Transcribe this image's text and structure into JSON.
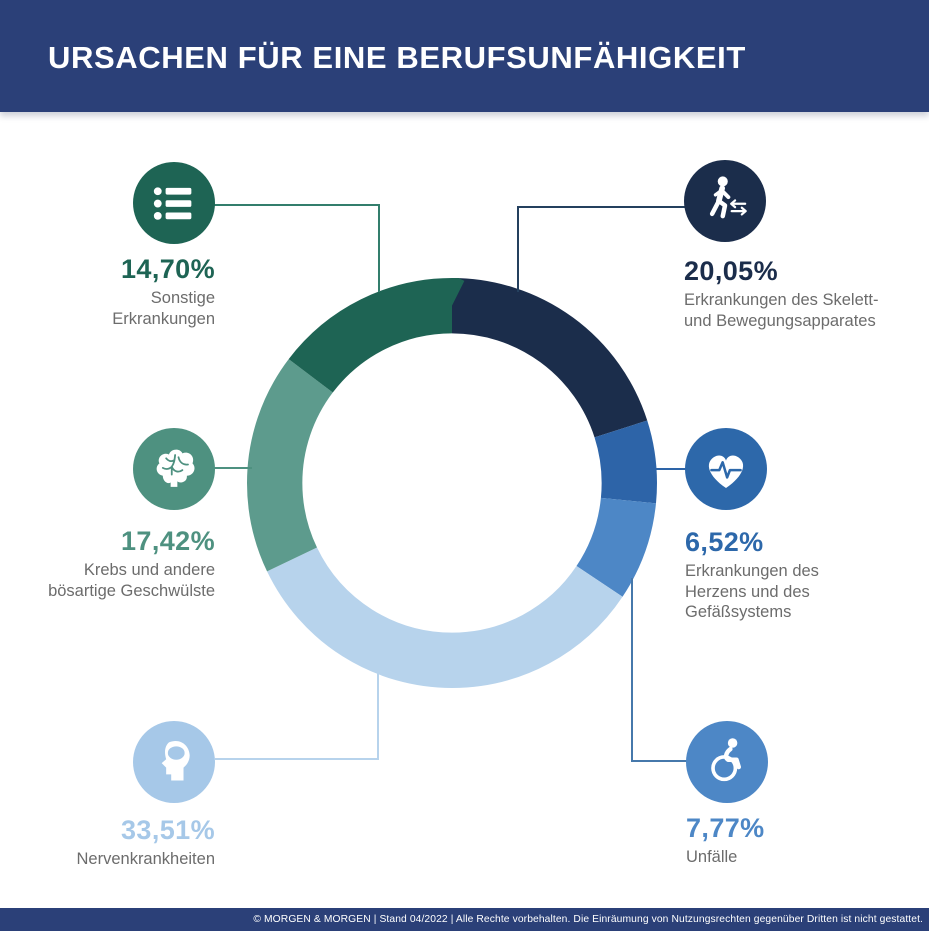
{
  "header": {
    "title": "URSACHEN FÜR EINE BERUFSUNFÄHIGKEIT"
  },
  "palette": {
    "header_navy": "#2b4078",
    "label_gray": "#6c6c6c",
    "background": "#ffffff"
  },
  "chart_data": {
    "type": "pie",
    "variant": "donut",
    "title": "Ursachen für eine Berufsunfähigkeit",
    "unit": "%",
    "start_angle_deg": 0,
    "direction": "clockwise",
    "inner_radius_ratio": 0.73,
    "legend_position": "callouts-around-chart",
    "segments": [
      {
        "label": "Erkrankungen des Skelett- und Bewegungsapparates",
        "value": 20.05,
        "color": "#1b2d4b"
      },
      {
        "label": "Erkrankungen des Herzens und des Gefäßsystems",
        "value": 6.52,
        "color": "#2d64a8"
      },
      {
        "label": "Unfälle",
        "value": 7.77,
        "color": "#4d87c6"
      },
      {
        "label": "Nervenkrankheiten",
        "value": 33.51,
        "color": "#b7d3ec"
      },
      {
        "label": "Krebs und andere bösartige Geschwülste",
        "value": 17.42,
        "color": "#5d9b8d"
      },
      {
        "label": "Sonstige Erkrankungen",
        "value": 14.7,
        "color": "#1e6454"
      }
    ]
  },
  "callouts": [
    {
      "percent": "14,70%",
      "label": "Sonstige\nErkrankungen",
      "color": "#1e6454",
      "line_color": "#337e6c",
      "icon": "list-icon"
    },
    {
      "percent": "20,05%",
      "label": "Erkrankungen des Skelett-\nund Bewegungsapparates",
      "color": "#1b2d4b",
      "line_color": "#24405e",
      "icon": "walking-person-icon"
    },
    {
      "percent": "17,42%",
      "label": "Krebs und andere\nbösartige Geschwülste",
      "color": "#4e9180",
      "line_color": "#4e9180",
      "icon": "brain-icon"
    },
    {
      "percent": "6,52%",
      "label": "Erkrankungen des\nHerzens und des\nGefäßsystems",
      "color": "#2d68aa",
      "line_color": "#2d64a8",
      "icon": "heart-pulse-icon"
    },
    {
      "percent": "33,51%",
      "label": "Nervenkrankheiten",
      "color": "#a6c8e8",
      "line_color": "#b7d3ec",
      "icon": "head-brain-icon"
    },
    {
      "percent": "7,77%",
      "label": "Unfälle",
      "color": "#4d87c6",
      "line_color": "#4678ab",
      "icon": "wheelchair-icon"
    }
  ],
  "footer": {
    "text": "© MORGEN & MORGEN | Stand 04/2022 | Alle Rechte vorbehalten. Die Einräumung von Nutzungsrechten gegenüber Dritten ist nicht gestattet."
  }
}
